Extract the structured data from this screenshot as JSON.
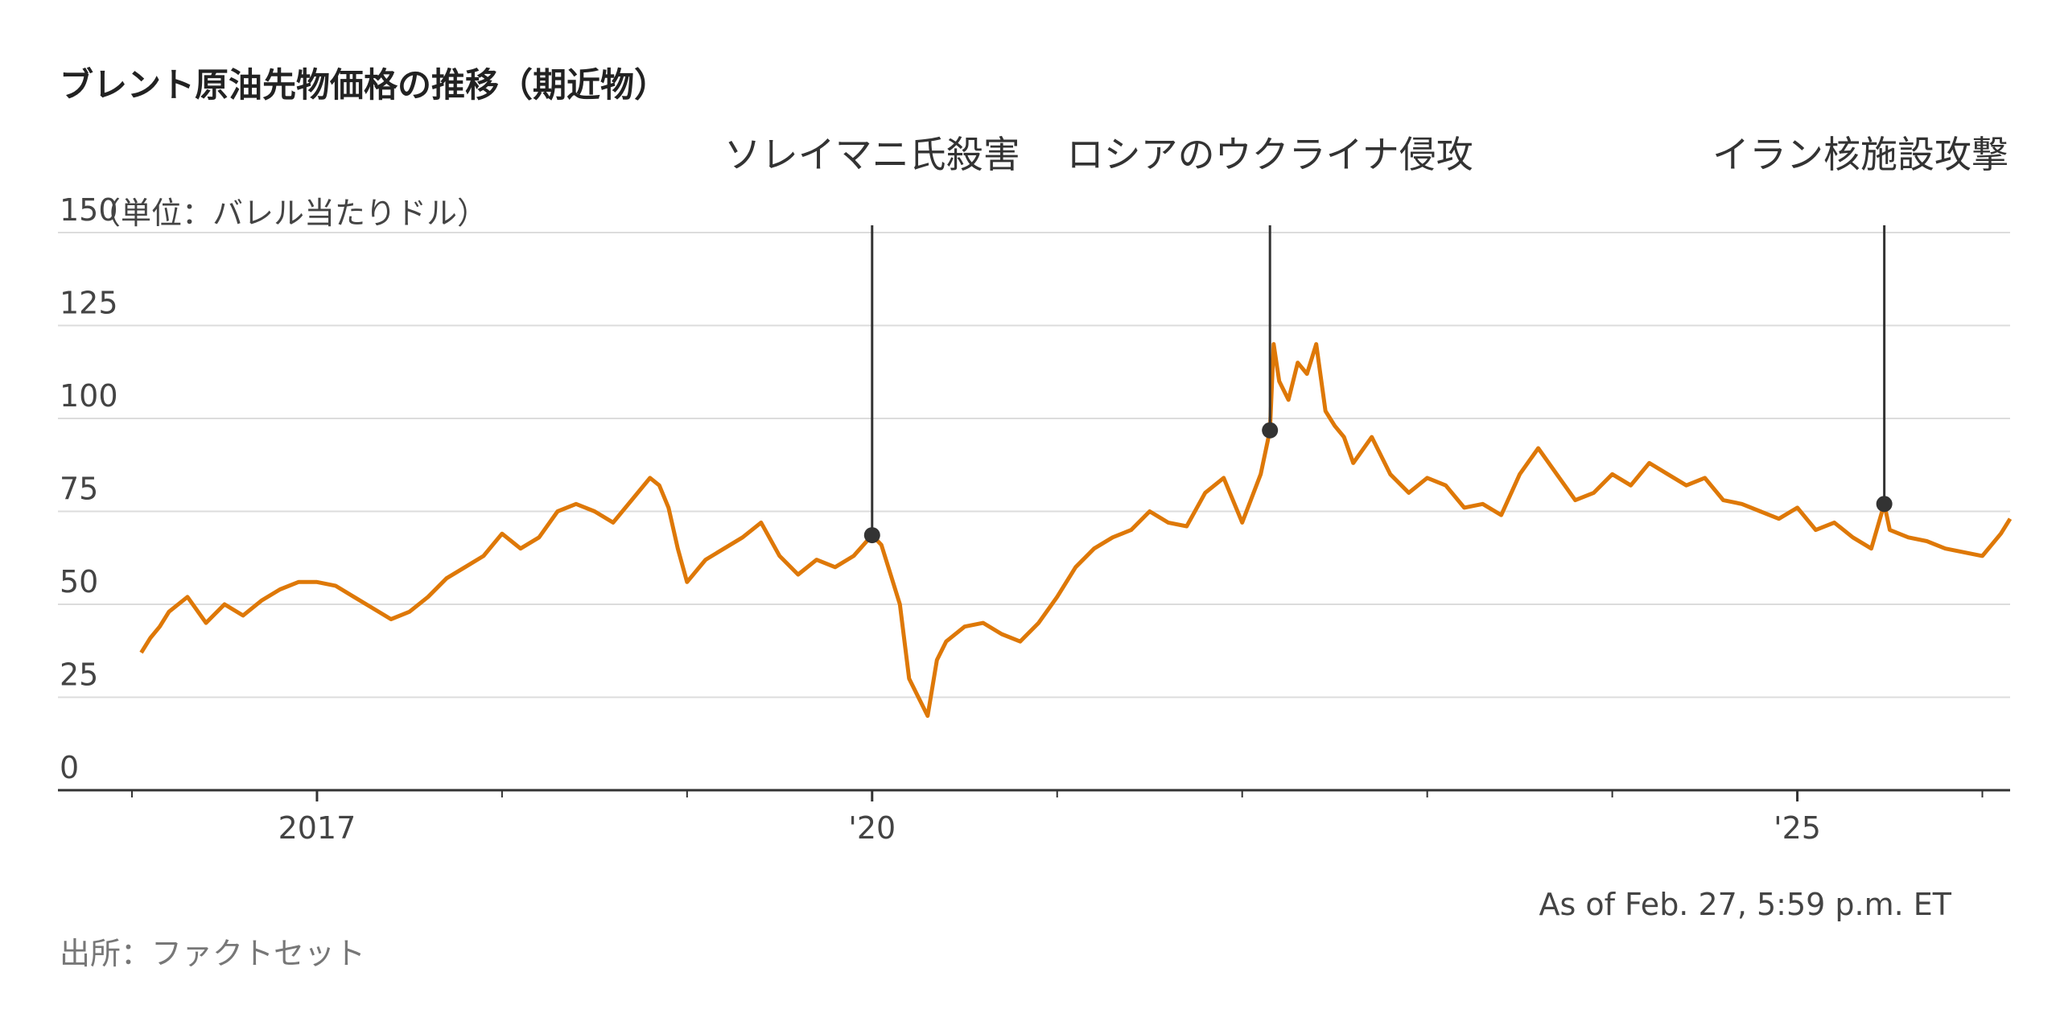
{
  "chart_data": {
    "type": "line",
    "title": "ブレント原油先物価格の推移（期近物）",
    "ylabel": "（単位：バレル当たりドル）",
    "ylim": [
      0,
      150
    ],
    "y_ticks": [
      "0",
      "25",
      "50",
      "75",
      "100",
      "125",
      "150"
    ],
    "y_tick_values": [
      0,
      25,
      50,
      75,
      100,
      125,
      150
    ],
    "x_tick_labels": [
      {
        "label": "2017",
        "date": 2017.0
      },
      {
        "label": "'20",
        "date": 2020.0
      },
      {
        "label": "'25",
        "date": 2025.0
      }
    ],
    "xlim": [
      2015.6,
      2026.15
    ],
    "grid": true,
    "line_color": "#de7807",
    "annotations": [
      {
        "label": "ソレイマニ氏殺害",
        "date": 2020.0,
        "value": 68.6
      },
      {
        "label": "ロシアのウクライナ侵攻",
        "date": 2022.15,
        "value": 96.8
      },
      {
        "label": "イラン核施設攻撃",
        "date": 2025.47,
        "value": 77.0
      }
    ],
    "series": [
      {
        "x": [
          2016.05,
          2016.1,
          2016.15,
          2016.2,
          2016.3,
          2016.4,
          2016.5,
          2016.6,
          2016.7,
          2016.8,
          2016.9,
          2017.0,
          2017.1,
          2017.2,
          2017.3,
          2017.4,
          2017.5,
          2017.6,
          2017.7,
          2017.8,
          2017.9,
          2018.0,
          2018.1,
          2018.2,
          2018.3,
          2018.4,
          2018.5,
          2018.6,
          2018.7,
          2018.8,
          2018.85,
          2018.9,
          2018.95,
          2019.0,
          2019.1,
          2019.2,
          2019.3,
          2019.4,
          2019.5,
          2019.6,
          2019.7,
          2019.8,
          2019.9,
          2020.0,
          2020.05,
          2020.1,
          2020.15,
          2020.2,
          2020.25,
          2020.3,
          2020.35,
          2020.4,
          2020.5,
          2020.6,
          2020.7,
          2020.8,
          2020.9,
          2021.0,
          2021.1,
          2021.2,
          2021.3,
          2021.4,
          2021.5,
          2021.6,
          2021.7,
          2021.8,
          2021.9,
          2022.0,
          2022.1,
          2022.15,
          2022.17,
          2022.2,
          2022.25,
          2022.3,
          2022.35,
          2022.4,
          2022.45,
          2022.5,
          2022.55,
          2022.6,
          2022.7,
          2022.8,
          2022.9,
          2023.0,
          2023.1,
          2023.2,
          2023.3,
          2023.4,
          2023.5,
          2023.6,
          2023.7,
          2023.8,
          2023.9,
          2024.0,
          2024.1,
          2024.2,
          2024.3,
          2024.4,
          2024.5,
          2024.6,
          2024.7,
          2024.8,
          2024.9,
          2025.0,
          2025.1,
          2025.2,
          2025.3,
          2025.4,
          2025.47,
          2025.5,
          2025.6,
          2025.7,
          2025.8,
          2025.9,
          2026.0,
          2026.1,
          2026.15
        ],
        "values": [
          37,
          41,
          44,
          48,
          52,
          45,
          50,
          47,
          51,
          54,
          56,
          56,
          55,
          52,
          49,
          46,
          48,
          52,
          57,
          60,
          63,
          69,
          65,
          68,
          75,
          77,
          75,
          72,
          78,
          84,
          82,
          76,
          65,
          56,
          62,
          65,
          68,
          72,
          63,
          58,
          62,
          60,
          63,
          68.6,
          66,
          58,
          50,
          30,
          25,
          20,
          35,
          40,
          44,
          45,
          42,
          40,
          45,
          52,
          60,
          65,
          68,
          70,
          75,
          72,
          71,
          80,
          84,
          72,
          85,
          96.8,
          120,
          110,
          105,
          115,
          112,
          120,
          102,
          98,
          95,
          88,
          95,
          85,
          80,
          84,
          82,
          76,
          77,
          74,
          85,
          92,
          85,
          78,
          80,
          85,
          82,
          88,
          85,
          82,
          84,
          78,
          77,
          75,
          73,
          76,
          70,
          72,
          68,
          65,
          77.0,
          70,
          68,
          67,
          65,
          64,
          63,
          69,
          73
        ]
      }
    ]
  },
  "footer": {
    "as_of": "As of Feb. 27, 5:59 p.m. ET",
    "source": "出所：ファクトセット"
  }
}
